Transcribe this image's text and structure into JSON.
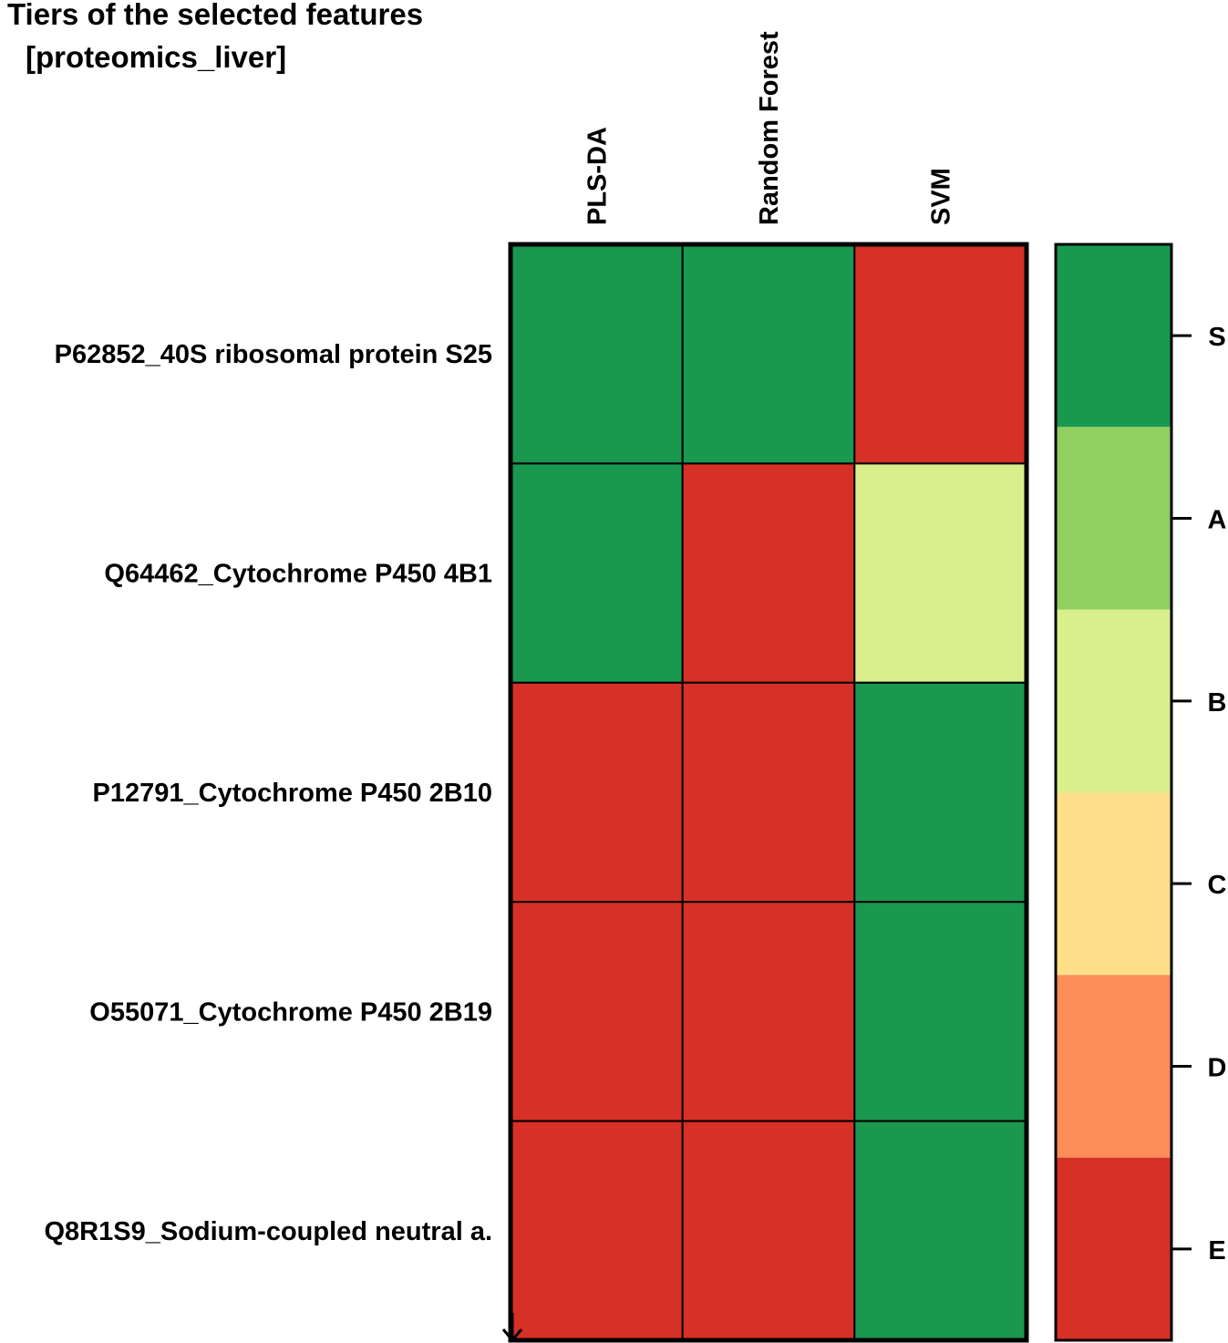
{
  "chart_data": {
    "type": "heatmap",
    "title": "Tiers of the selected features",
    "subtitle": "[proteomics_liver]",
    "columns": [
      "PLS-DA",
      "Random Forest",
      "SVM"
    ],
    "rows": [
      "P62852_40S ribosomal protein S25",
      "Q64462_Cytochrome P450 4B1",
      "P12791_Cytochrome P450 2B10",
      "O55071_Cytochrome P450 2B19",
      "Q8R1S9_Sodium-coupled neutral a."
    ],
    "values": [
      [
        "S",
        "S",
        "E"
      ],
      [
        "S",
        "E",
        "B"
      ],
      [
        "E",
        "E",
        "S"
      ],
      [
        "E",
        "E",
        "S"
      ],
      [
        "E",
        "E",
        "S"
      ]
    ],
    "legend": {
      "tiers": [
        "S",
        "A",
        "B",
        "C",
        "D",
        "E"
      ],
      "colors": {
        "S": "#1a9850",
        "A": "#91cf60",
        "B": "#d9ef8b",
        "C": "#fee08b",
        "D": "#fc8d59",
        "E": "#d73027"
      },
      "placement": "right"
    }
  }
}
